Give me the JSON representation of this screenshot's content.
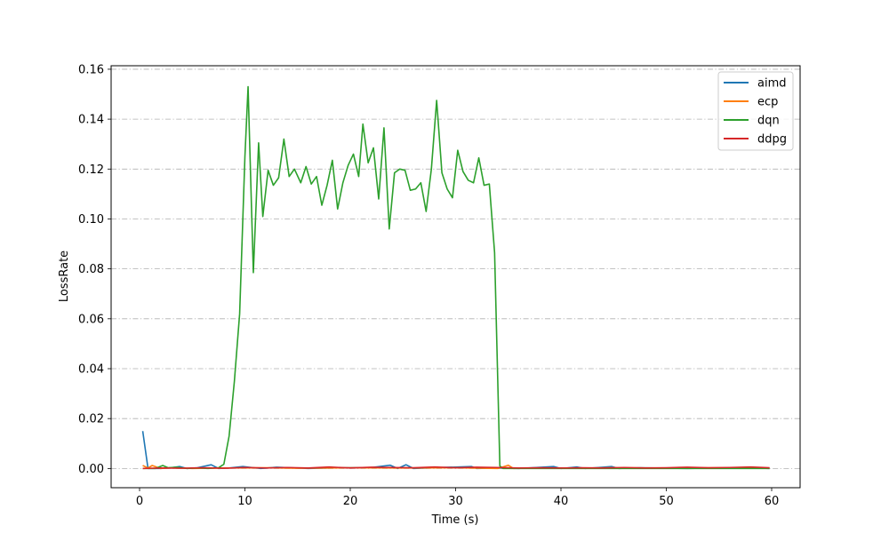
{
  "chart_data": {
    "type": "line",
    "xlabel": "Time (s)",
    "ylabel": "LossRate",
    "xlim": [
      -2.7,
      62.7
    ],
    "ylim": [
      -0.0077,
      0.1614
    ],
    "xticks": [
      0,
      10,
      20,
      30,
      40,
      50,
      60
    ],
    "xtick_labels": [
      "0",
      "10",
      "20",
      "30",
      "40",
      "50",
      "60"
    ],
    "yticks": [
      0.0,
      0.02,
      0.04,
      0.06,
      0.08,
      0.1,
      0.12,
      0.14,
      0.16
    ],
    "ytick_labels": [
      "0.00",
      "0.02",
      "0.04",
      "0.06",
      "0.08",
      "0.10",
      "0.12",
      "0.14",
      "0.16"
    ],
    "grid": "horizontal dash-dot",
    "legend_position": "top-right",
    "series": [
      {
        "name": "aimd",
        "color": "#1f77b4",
        "x": [
          0.3,
          0.8,
          2.0,
          3.0,
          3.8,
          4.5,
          5.5,
          6.8,
          7.5,
          8.5,
          9.8,
          11.5,
          13.0,
          16.0,
          19.0,
          22.0,
          23.8,
          24.5,
          25.3,
          26.0,
          28.0,
          31.5,
          32.0,
          34.0,
          36.0,
          39.3,
          40.0,
          41.5,
          42.3,
          44.8,
          45.5,
          47.5,
          52.0,
          55.0,
          57.5,
          59.8
        ],
        "y": [
          0.015,
          0.0,
          0.0,
          0.0003,
          0.0008,
          0.0,
          0.0003,
          0.0015,
          0.0,
          0.0002,
          0.0008,
          0.0,
          0.0005,
          0.0,
          0.0003,
          0.0004,
          0.0013,
          0.0,
          0.0015,
          0.0,
          0.0003,
          0.0008,
          0.0,
          0.0002,
          0.0,
          0.0008,
          0.0,
          0.0006,
          0.0,
          0.0008,
          0.0,
          0.0003,
          0.0,
          0.0002,
          0.0003,
          0.0
        ]
      },
      {
        "name": "ecp",
        "color": "#ff7f0e",
        "x": [
          0.3,
          0.8,
          1.2,
          2.0,
          3.0,
          5.0,
          8.0,
          12.0,
          15.0,
          20.0,
          25.0,
          30.0,
          34.0,
          35.0,
          35.5,
          36.5,
          40.0,
          45.0,
          50.0,
          55.0,
          59.8
        ],
        "y": [
          0.0012,
          0.0002,
          0.0012,
          0.0,
          0.0003,
          0.0,
          0.0002,
          0.0003,
          0.0001,
          0.0003,
          0.0002,
          0.0003,
          0.0,
          0.0013,
          0.0,
          0.0002,
          0.0001,
          0.0003,
          0.0002,
          0.0003,
          0.0002
        ]
      },
      {
        "name": "dqn",
        "color": "#2ca02c",
        "x": [
          0.3,
          1.0,
          1.5,
          2.2,
          2.7,
          3.5,
          4.5,
          5.5,
          6.5,
          7.5,
          8.0,
          8.5,
          9.0,
          9.5,
          10.0,
          10.3,
          10.8,
          11.3,
          11.7,
          12.2,
          12.7,
          13.2,
          13.7,
          14.2,
          14.7,
          15.3,
          15.8,
          16.3,
          16.8,
          17.3,
          17.8,
          18.3,
          18.8,
          19.3,
          19.8,
          20.3,
          20.8,
          21.2,
          21.7,
          22.2,
          22.7,
          23.2,
          23.7,
          24.2,
          24.7,
          25.2,
          25.7,
          26.2,
          26.7,
          27.2,
          27.7,
          28.2,
          28.7,
          29.2,
          29.7,
          30.2,
          30.7,
          31.2,
          31.7,
          32.2,
          32.7,
          33.2,
          33.7,
          34.2,
          34.5,
          35.0,
          40.0,
          45.0,
          50.0,
          55.0,
          59.8
        ],
        "y": [
          0.0,
          0.0,
          0.0,
          0.0012,
          0.0003,
          0.0005,
          0.0,
          0.0002,
          0.0,
          0.0003,
          0.0017,
          0.013,
          0.035,
          0.062,
          0.125,
          0.153,
          0.0785,
          0.1305,
          0.101,
          0.1195,
          0.1135,
          0.1165,
          0.132,
          0.117,
          0.12,
          0.1145,
          0.121,
          0.114,
          0.117,
          0.1055,
          0.1135,
          0.1235,
          0.104,
          0.1145,
          0.1215,
          0.126,
          0.117,
          0.138,
          0.1225,
          0.1285,
          0.108,
          0.1365,
          0.096,
          0.1185,
          0.12,
          0.1195,
          0.1115,
          0.112,
          0.1145,
          0.103,
          0.12,
          0.1475,
          0.1185,
          0.112,
          0.1085,
          0.1275,
          0.119,
          0.1155,
          0.1145,
          0.1245,
          0.1135,
          0.114,
          0.0865,
          0.001,
          0.0,
          0.0,
          0.0,
          0.0,
          0.0,
          0.0,
          0.0
        ]
      },
      {
        "name": "ddpg",
        "color": "#d62728",
        "x": [
          0.3,
          2.0,
          4.0,
          6.0,
          8.0,
          10.0,
          12.0,
          14.0,
          16.0,
          18.0,
          20.0,
          22.0,
          24.0,
          26.0,
          28.0,
          30.0,
          32.0,
          34.0,
          36.0,
          38.0,
          40.0,
          42.0,
          44.0,
          46.0,
          48.0,
          50.0,
          52.0,
          54.0,
          56.0,
          58.0,
          59.8
        ],
        "y": [
          0.0,
          0.0002,
          0.0001,
          0.0003,
          0.0001,
          0.0004,
          0.0002,
          0.0004,
          0.0002,
          0.0006,
          0.0002,
          0.0005,
          0.0004,
          0.0003,
          0.0006,
          0.0003,
          0.0005,
          0.0004,
          0.0002,
          0.0003,
          0.0002,
          0.0003,
          0.0002,
          0.0004,
          0.0002,
          0.0003,
          0.0005,
          0.0003,
          0.0004,
          0.0006,
          0.0003
        ]
      }
    ]
  }
}
